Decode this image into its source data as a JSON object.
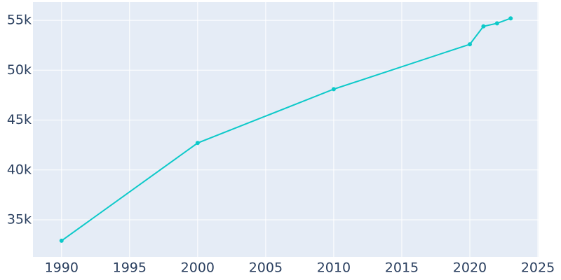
{
  "chart_data": {
    "type": "line",
    "x": [
      1990,
      2000,
      2010,
      2020,
      2021,
      2022,
      2023
    ],
    "series": [
      {
        "color": "#0dc9c9",
        "values": [
          32900,
          42700,
          48100,
          52600,
          54400,
          54700,
          55200
        ]
      }
    ],
    "xlim": [
      1987.9,
      2025.05
    ],
    "xticks": [
      1990,
      1995,
      2000,
      2005,
      2010,
      2015,
      2020,
      2025
    ],
    "ylim": [
      31280,
      56830
    ],
    "yticks": [
      {
        "value": 35000,
        "label": "35k"
      },
      {
        "value": 40000,
        "label": "40k"
      },
      {
        "value": 45000,
        "label": "45k"
      },
      {
        "value": 50000,
        "label": "50k"
      },
      {
        "value": 55000,
        "label": "55k"
      }
    ],
    "grid": true,
    "plot_background": "#e5ecf6"
  }
}
